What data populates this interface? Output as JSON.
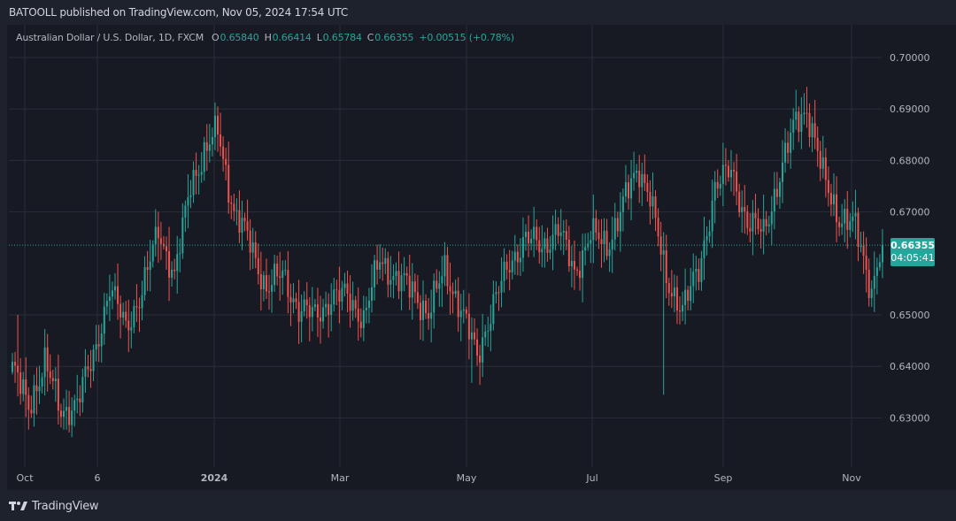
{
  "header": {
    "publisher_line": "BATOOLL published on TradingView.com, Nov 05, 2024 17:54 UTC"
  },
  "legend": {
    "symbol": "Australian Dollar / U.S. Dollar, 1D, FXCM",
    "open_label": "O",
    "open": "0.65840",
    "high_label": "H",
    "high": "0.66414",
    "low_label": "L",
    "low": "0.65784",
    "close_label": "C",
    "close": "0.66355",
    "change": "+0.00515 (+0.78%)"
  },
  "price_tag": {
    "price": "0.66355",
    "countdown": "04:05:41"
  },
  "footer": {
    "logo_text": "TradingView"
  },
  "colors": {
    "up": "#26a69a",
    "down": "#ef5350",
    "background": "#171a22",
    "frame": "#1e222d",
    "grid": "#2a2e39",
    "text": "#b2b5be"
  },
  "chart_data": {
    "type": "candlestick",
    "title": "Australian Dollar / U.S. Dollar, 1D, FXCM",
    "xlabel": "",
    "ylabel": "",
    "ylim": [
      0.622,
      0.704
    ],
    "grid": true,
    "y_ticks": [
      "0.70000",
      "0.69000",
      "0.68000",
      "0.67000",
      "0.65000",
      "0.64000",
      "0.63000"
    ],
    "x_ticks": [
      "Oct",
      "6",
      "2024",
      "Mar",
      "May",
      "Jul",
      "Sep",
      "Nov"
    ],
    "last_price": 0.66355,
    "anchors": [
      [
        0,
        0.64
      ],
      [
        6,
        0.632
      ],
      [
        12,
        0.641
      ],
      [
        18,
        0.631
      ],
      [
        24,
        0.633
      ],
      [
        30,
        0.642
      ],
      [
        36,
        0.655
      ],
      [
        42,
        0.648
      ],
      [
        48,
        0.654
      ],
      [
        54,
        0.667
      ],
      [
        60,
        0.657
      ],
      [
        66,
        0.676
      ],
      [
        72,
        0.682
      ],
      [
        76,
        0.686
      ],
      [
        82,
        0.67
      ],
      [
        88,
        0.664
      ],
      [
        94,
        0.655
      ],
      [
        100,
        0.658
      ],
      [
        106,
        0.651
      ],
      [
        112,
        0.65
      ],
      [
        118,
        0.653
      ],
      [
        124,
        0.654
      ],
      [
        130,
        0.649
      ],
      [
        136,
        0.661
      ],
      [
        142,
        0.657
      ],
      [
        148,
        0.655
      ],
      [
        154,
        0.65
      ],
      [
        160,
        0.659
      ],
      [
        166,
        0.651
      ],
      [
        172,
        0.642
      ],
      [
        178,
        0.652
      ],
      [
        184,
        0.66
      ],
      [
        190,
        0.665
      ],
      [
        196,
        0.663
      ],
      [
        202,
        0.667
      ],
      [
        208,
        0.658
      ],
      [
        214,
        0.666
      ],
      [
        220,
        0.663
      ],
      [
        226,
        0.672
      ],
      [
        232,
        0.678
      ],
      [
        236,
        0.674
      ],
      [
        242,
        0.656
      ],
      [
        248,
        0.652
      ],
      [
        254,
        0.658
      ],
      [
        260,
        0.675
      ],
      [
        266,
        0.678
      ],
      [
        272,
        0.668
      ],
      [
        278,
        0.666
      ],
      [
        284,
        0.677
      ],
      [
        290,
        0.688
      ],
      [
        294,
        0.69
      ],
      [
        300,
        0.677
      ],
      [
        306,
        0.669
      ],
      [
        312,
        0.667
      ],
      [
        318,
        0.655
      ],
      [
        322,
        0.664
      ]
    ]
  }
}
